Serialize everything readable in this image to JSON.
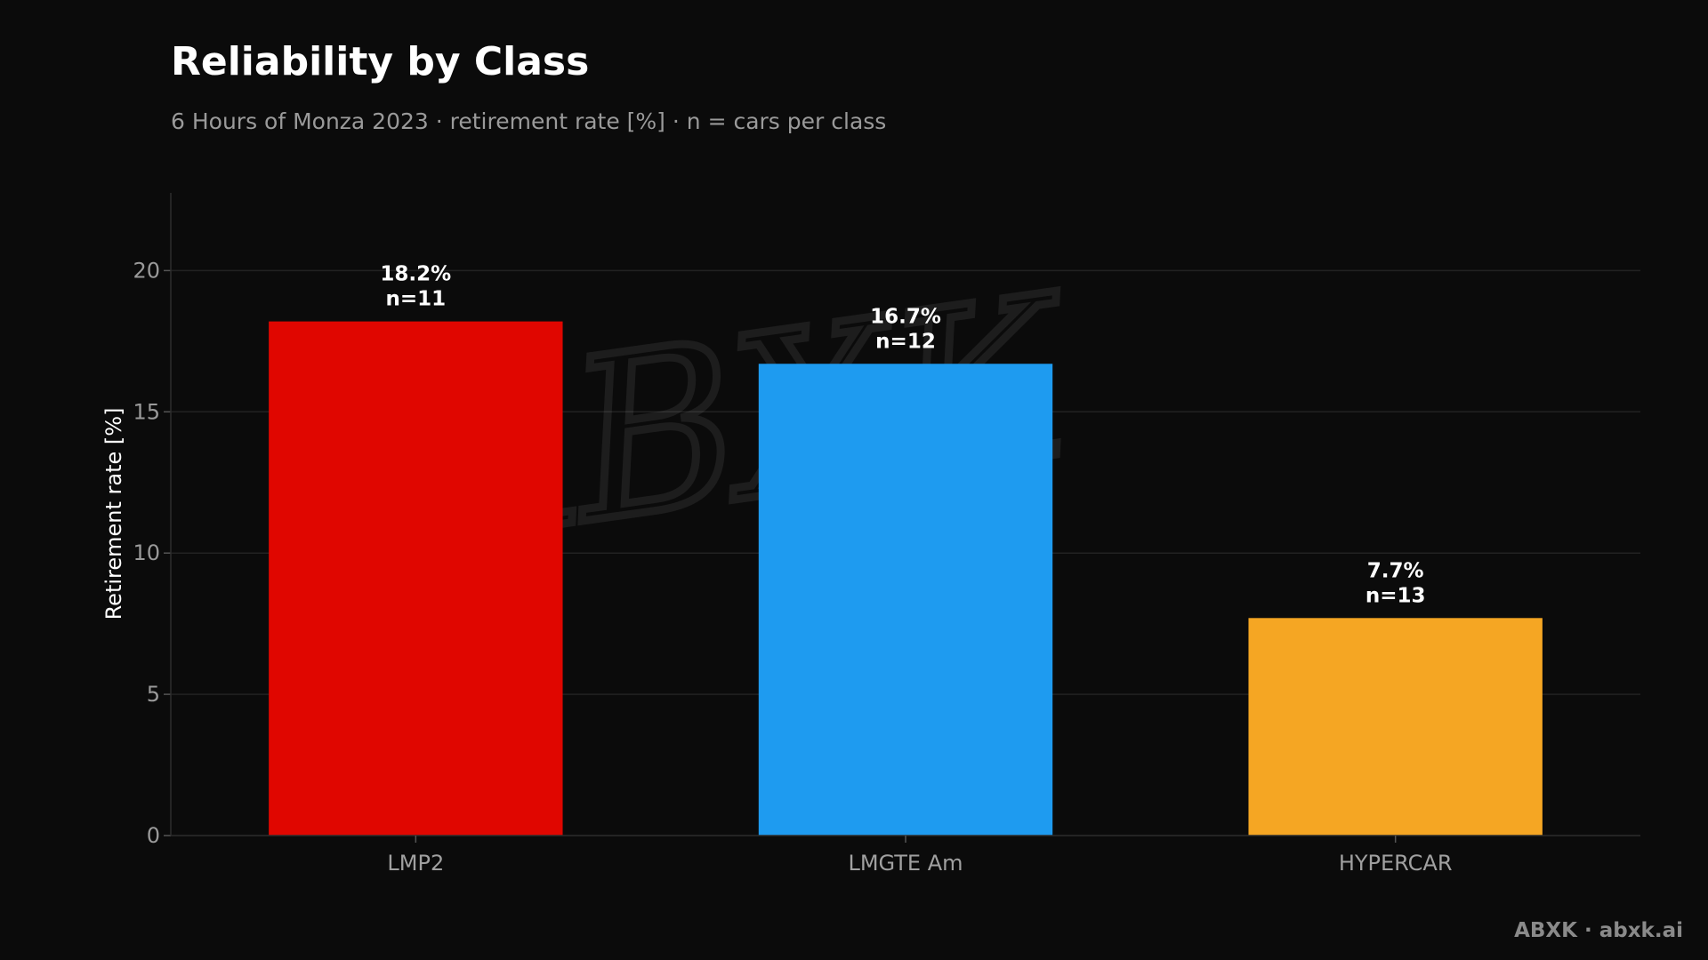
{
  "header": {
    "title": "Reliability by Class",
    "subtitle": "6 Hours of Monza 2023 · retirement rate [%] · n = cars per class"
  },
  "watermark": "ABXK",
  "credit": "ABXK · abxk.ai",
  "colors": {
    "background": "#0b0b0b",
    "LMP2": "#e00600",
    "LMGTE Am": "#1e9bf0",
    "HYPERCAR": "#f5a623"
  },
  "chart_data": {
    "type": "bar",
    "categories": [
      "LMP2",
      "LMGTE Am",
      "HYPERCAR"
    ],
    "values": [
      18.2,
      16.7,
      7.7
    ],
    "data_labels": [
      "18.2%",
      "16.7%",
      "7.7%"
    ],
    "counts": [
      "n=11",
      "n=12",
      "n=13"
    ],
    "colors": [
      "#e00600",
      "#1e9bf0",
      "#f5a623"
    ],
    "title": "Reliability by Class",
    "subtitle": "6 Hours of Monza 2023 · retirement rate [%] · n = cars per class",
    "xlabel": "",
    "ylabel": "Retirement rate [%]",
    "ylim": [
      0,
      22.75
    ],
    "yticks": [
      0,
      5,
      10,
      15,
      20
    ],
    "grid": true
  }
}
